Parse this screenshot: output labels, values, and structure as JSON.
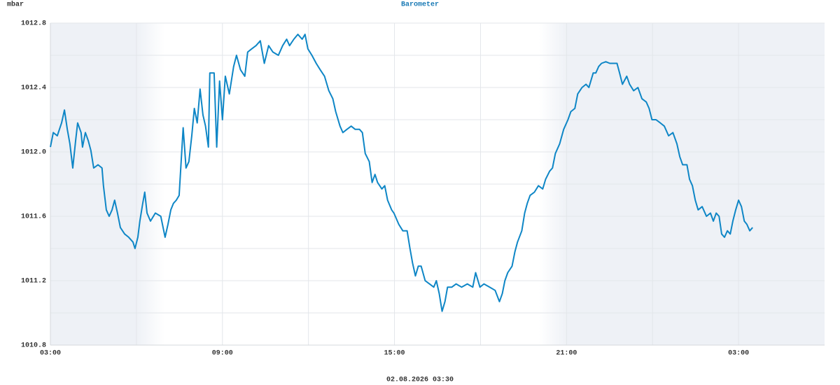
{
  "chart_data": {
    "type": "line",
    "title": "Barometer",
    "y_label": "mbar",
    "caption": "02.08.2026 03:30",
    "xlim": [
      0,
      27
    ],
    "xticks": [
      {
        "value": 0,
        "label": "03:00"
      },
      {
        "value": 6,
        "label": "09:00"
      },
      {
        "value": 12,
        "label": "15:00"
      },
      {
        "value": 18,
        "label": "21:00"
      },
      {
        "value": 24,
        "label": "03:00"
      }
    ],
    "xminor": [
      3,
      9,
      15,
      21
    ],
    "ylim": [
      1010.8,
      1012.8
    ],
    "yticks": [
      1010.8,
      1011.2,
      1011.6,
      {
        "value": 1012,
        "label": "1012.0"
      },
      1012.4,
      1012.8
    ],
    "yminor": [
      1011.0,
      1011.4,
      1011.8,
      1012.2,
      1012.6
    ],
    "grid": true,
    "x": [
      0,
      0.1,
      0.24,
      0.39,
      0.49,
      0.59,
      0.68,
      0.78,
      0.88,
      0.95,
      1.07,
      1.12,
      1.22,
      1.32,
      1.41,
      1.51,
      1.66,
      1.8,
      1.85,
      1.95,
      2.05,
      2.15,
      2.24,
      2.34,
      2.44,
      2.59,
      2.73,
      2.88,
      2.95,
      3.05,
      3.12,
      3.22,
      3.29,
      3.37,
      3.49,
      3.66,
      3.85,
      4.0,
      4.1,
      4.2,
      4.29,
      4.39,
      4.49,
      4.59,
      4.63,
      4.73,
      4.83,
      4.93,
      5.02,
      5.12,
      5.22,
      5.32,
      5.41,
      5.51,
      5.56,
      5.71,
      5.8,
      5.9,
      6.0,
      6.1,
      6.24,
      6.39,
      6.49,
      6.63,
      6.78,
      6.88,
      7.02,
      7.17,
      7.32,
      7.46,
      7.61,
      7.76,
      7.95,
      8.1,
      8.24,
      8.34,
      8.49,
      8.63,
      8.78,
      8.88,
      8.98,
      9.12,
      9.27,
      9.41,
      9.56,
      9.71,
      9.85,
      9.95,
      10.1,
      10.2,
      10.34,
      10.49,
      10.63,
      10.78,
      10.88,
      10.98,
      11.12,
      11.22,
      11.32,
      11.41,
      11.56,
      11.66,
      11.76,
      11.9,
      11.98,
      12.15,
      12.29,
      12.44,
      12.54,
      12.63,
      12.73,
      12.83,
      12.93,
      13.07,
      13.22,
      13.37,
      13.46,
      13.56,
      13.66,
      13.76,
      13.85,
      14.0,
      14.15,
      14.34,
      14.54,
      14.73,
      14.83,
      14.98,
      15.12,
      15.32,
      15.51,
      15.66,
      15.76,
      15.85,
      15.95,
      16.1,
      16.2,
      16.29,
      16.44,
      16.54,
      16.63,
      16.73,
      16.88,
      17.02,
      17.17,
      17.27,
      17.41,
      17.51,
      17.61,
      17.76,
      17.9,
      18.05,
      18.15,
      18.29,
      18.39,
      18.54,
      18.68,
      18.78,
      18.93,
      19.02,
      19.12,
      19.22,
      19.37,
      19.51,
      19.66,
      19.76,
      19.85,
      19.95,
      20.1,
      20.2,
      20.34,
      20.49,
      20.63,
      20.78,
      20.88,
      20.98,
      21.12,
      21.27,
      21.41,
      21.56,
      21.71,
      21.85,
      21.95,
      22.05,
      22.2,
      22.29,
      22.39,
      22.49,
      22.59,
      22.73,
      22.88,
      23.02,
      23.12,
      23.22,
      23.32,
      23.41,
      23.51,
      23.61,
      23.71,
      23.8,
      23.9,
      24.0,
      24.1,
      24.2,
      24.29,
      24.39,
      24.49
    ],
    "series": [
      {
        "color": "#0e86c6",
        "values": [
          1012.03,
          1012.12,
          1012.1,
          1012.18,
          1012.26,
          1012.14,
          1012.05,
          1011.9,
          1012.07,
          1012.18,
          1012.12,
          1012.03,
          1012.12,
          1012.07,
          1012.01,
          1011.9,
          1011.92,
          1011.9,
          1011.79,
          1011.64,
          1011.6,
          1011.64,
          1011.7,
          1011.62,
          1011.53,
          1011.49,
          1011.47,
          1011.44,
          1011.4,
          1011.47,
          1011.57,
          1011.68,
          1011.75,
          1011.62,
          1011.57,
          1011.62,
          1011.6,
          1011.47,
          1011.55,
          1011.64,
          1011.68,
          1011.7,
          1011.73,
          1012.03,
          1012.15,
          1011.9,
          1011.94,
          1012.1,
          1012.27,
          1012.18,
          1012.39,
          1012.23,
          1012.16,
          1012.03,
          1012.49,
          1012.49,
          1012.03,
          1012.44,
          1012.2,
          1012.47,
          1012.36,
          1012.53,
          1012.6,
          1012.51,
          1012.47,
          1012.62,
          1012.64,
          1012.66,
          1012.69,
          1012.55,
          1012.66,
          1012.62,
          1012.6,
          1012.66,
          1012.7,
          1012.66,
          1012.7,
          1012.73,
          1012.7,
          1012.73,
          1012.64,
          1012.6,
          1012.55,
          1012.51,
          1012.47,
          1012.38,
          1012.33,
          1012.25,
          1012.16,
          1012.12,
          1012.14,
          1012.16,
          1012.14,
          1012.14,
          1012.12,
          1011.99,
          1011.94,
          1011.81,
          1011.86,
          1011.81,
          1011.77,
          1011.79,
          1011.7,
          1011.64,
          1011.62,
          1011.55,
          1011.51,
          1011.51,
          1011.4,
          1011.31,
          1011.23,
          1011.29,
          1011.29,
          1011.2,
          1011.18,
          1011.16,
          1011.2,
          1011.12,
          1011.01,
          1011.07,
          1011.16,
          1011.16,
          1011.18,
          1011.16,
          1011.18,
          1011.16,
          1011.25,
          1011.16,
          1011.18,
          1011.16,
          1011.14,
          1011.07,
          1011.12,
          1011.2,
          1011.25,
          1011.29,
          1011.38,
          1011.44,
          1011.51,
          1011.62,
          1011.68,
          1011.73,
          1011.75,
          1011.79,
          1011.77,
          1011.83,
          1011.88,
          1011.9,
          1011.99,
          1012.05,
          1012.14,
          1012.2,
          1012.25,
          1012.27,
          1012.36,
          1012.4,
          1012.42,
          1012.4,
          1012.49,
          1012.49,
          1012.53,
          1012.55,
          1012.56,
          1012.55,
          1012.55,
          1012.55,
          1012.49,
          1012.42,
          1012.47,
          1012.42,
          1012.38,
          1012.4,
          1012.33,
          1012.31,
          1012.27,
          1012.2,
          1012.2,
          1012.18,
          1012.16,
          1012.1,
          1012.12,
          1012.05,
          1011.97,
          1011.92,
          1011.92,
          1011.83,
          1011.79,
          1011.7,
          1011.64,
          1011.66,
          1011.6,
          1011.62,
          1011.57,
          1011.62,
          1011.6,
          1011.49,
          1011.47,
          1011.51,
          1011.49,
          1011.57,
          1011.64,
          1011.7,
          1011.66,
          1011.57,
          1011.55,
          1011.51,
          1011.53
        ]
      }
    ]
  }
}
